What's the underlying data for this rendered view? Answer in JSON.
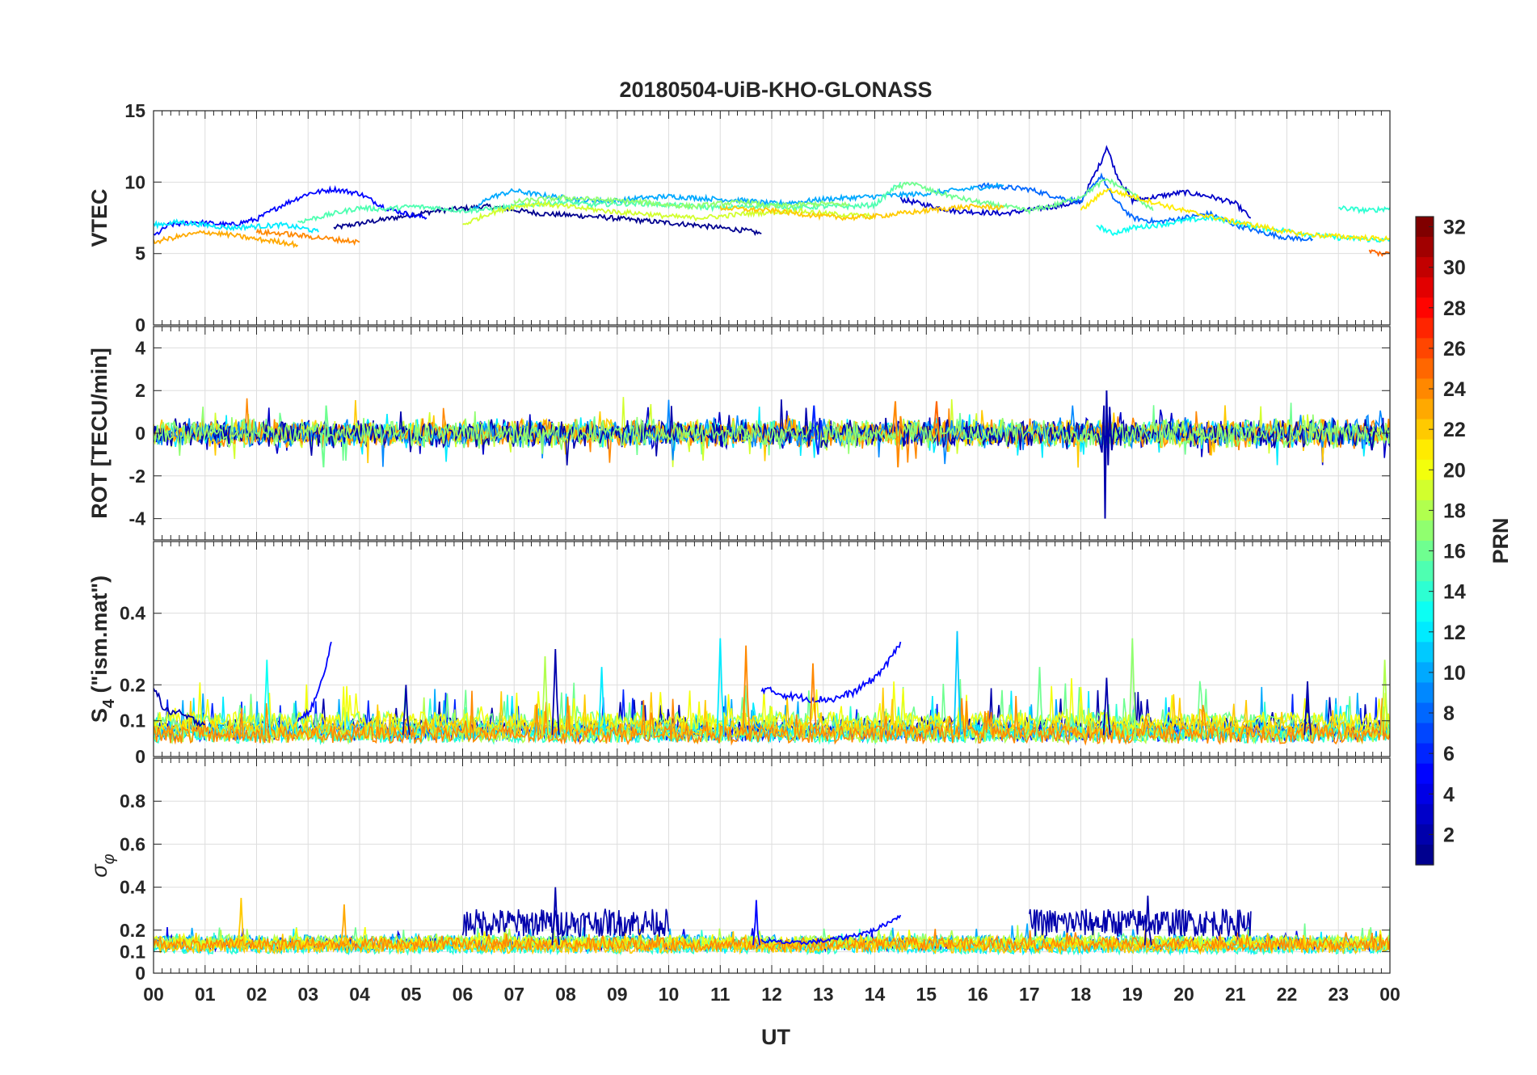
{
  "chart_data": {
    "type": "line",
    "title": "20180504-UiB-KHO-GLONASS",
    "xlabel": "UT",
    "x_tick_labels": [
      "00",
      "01",
      "02",
      "03",
      "04",
      "05",
      "06",
      "07",
      "08",
      "09",
      "10",
      "11",
      "12",
      "13",
      "14",
      "15",
      "16",
      "17",
      "18",
      "19",
      "20",
      "21",
      "22",
      "23",
      "00"
    ],
    "x_range_hours": [
      0,
      24
    ],
    "grid": true,
    "colormap": "jet",
    "colors": [
      "#00008f",
      "#0000ff",
      "#0080ff",
      "#00ffff",
      "#80ff80",
      "#ffff00",
      "#ff8000",
      "#ff0000",
      "#800000"
    ],
    "colorbar": {
      "label": "PRN",
      "range": [
        1,
        32
      ],
      "ticks": [
        2,
        4,
        6,
        8,
        10,
        12,
        14,
        16,
        18,
        20,
        22,
        24,
        26,
        28,
        30,
        32
      ],
      "placement": "right"
    },
    "panels": [
      {
        "id": "vtec",
        "ylabel": "VTEC",
        "ylim": [
          0,
          15
        ],
        "yticks": [
          0,
          5,
          10,
          15
        ],
        "series": [
          {
            "prn": 1,
            "x": [
              3.5,
              4.5,
              5.5,
              6.5,
              7.5,
              8.5,
              9.5,
              10.5,
              11.5,
              11.8
            ],
            "y": [
              6.8,
              7.4,
              8.0,
              8.3,
              7.8,
              7.6,
              7.3,
              7.0,
              6.6,
              6.4
            ]
          },
          {
            "prn": 3,
            "x": [
              14.5,
              15.5,
              16.5,
              17.5,
              18.0,
              18.4,
              18.5,
              18.7,
              19.0,
              19.5,
              20.0,
              20.5,
              21.0,
              21.3
            ],
            "y": [
              8.8,
              8.0,
              7.8,
              8.3,
              8.6,
              11.5,
              12.5,
              10.5,
              8.7,
              9.0,
              9.3,
              9.0,
              8.5,
              7.5
            ]
          },
          {
            "prn": 5,
            "x": [
              0.0,
              0.3,
              0.8,
              1.5,
              2.0,
              2.5,
              3.0,
              3.5,
              4.0,
              4.5,
              5.0,
              5.3
            ],
            "y": [
              6.2,
              7.0,
              7.2,
              7.0,
              7.4,
              8.4,
              9.2,
              9.5,
              9.2,
              8.2,
              7.7,
              7.5
            ]
          },
          {
            "prn": 8,
            "x": [
              16.0,
              17.0,
              17.5,
              18.0,
              18.4,
              18.6,
              19.0,
              19.5,
              20.0,
              20.5,
              21.0,
              21.5,
              22.0,
              22.5
            ],
            "y": [
              9.8,
              9.5,
              9.0,
              8.6,
              10.5,
              9.0,
              7.5,
              7.2,
              7.5,
              7.8,
              7.0,
              6.5,
              6.1,
              6.0
            ]
          },
          {
            "prn": 10,
            "x": [
              6.2,
              6.5,
              7.0,
              7.5,
              8.0,
              8.5,
              9.0,
              9.5,
              10.0,
              10.5,
              11.0,
              11.5,
              12.0,
              12.5,
              13.0,
              13.5,
              14.0,
              14.5,
              15.0,
              15.5,
              16.0,
              16.5
            ],
            "y": [
              8.0,
              8.9,
              9.4,
              9.1,
              8.9,
              8.7,
              8.7,
              8.9,
              9.0,
              8.9,
              8.8,
              8.7,
              8.5,
              8.6,
              8.8,
              8.9,
              9.0,
              9.1,
              9.2,
              9.4,
              9.6,
              9.8
            ]
          },
          {
            "prn": 12,
            "x": [
              0.0,
              0.5,
              1.0,
              1.5,
              2.0,
              2.5,
              3.0,
              3.2
            ],
            "y": [
              7.0,
              7.2,
              7.0,
              6.8,
              6.9,
              7.0,
              6.7,
              6.5
            ]
          },
          {
            "prn": 13,
            "x": [
              18.3,
              18.6,
              19.0,
              19.5,
              20.0,
              20.5,
              21.0,
              21.5,
              22.0,
              22.5,
              23.0,
              23.5,
              24.0
            ],
            "y": [
              7.0,
              6.4,
              6.8,
              7.0,
              7.3,
              7.5,
              7.2,
              6.8,
              6.6,
              6.3,
              6.1,
              6.0,
              5.9
            ]
          },
          {
            "prn": 14,
            "x": [
              23.0,
              23.3,
              23.6,
              24.0
            ],
            "y": [
              8.2,
              8.1,
              8.0,
              8.2
            ]
          },
          {
            "prn": 15,
            "x": [
              2.8,
              3.5,
              4.0,
              4.5,
              5.0,
              5.5,
              6.0,
              6.5,
              7.0,
              7.5,
              8.0,
              8.5,
              9.0,
              9.5,
              10.0,
              10.5,
              11.0,
              11.5,
              12.0,
              12.5,
              13.0,
              13.5,
              14.0,
              14.5
            ],
            "y": [
              7.2,
              7.8,
              8.2,
              8.1,
              8.3,
              8.2,
              8.0,
              8.1,
              8.3,
              8.5,
              8.6,
              8.4,
              8.5,
              8.5,
              8.4,
              8.3,
              8.2,
              8.3,
              8.4,
              8.2,
              8.3,
              8.3,
              8.4,
              10.0
            ]
          },
          {
            "prn": 16,
            "x": [
              14.4,
              14.7,
              15.0,
              15.5,
              16.0,
              16.5,
              17.0,
              17.5,
              18.0,
              18.5,
              19.0,
              19.4
            ],
            "y": [
              9.5,
              10.0,
              9.5,
              9.0,
              8.6,
              8.3,
              8.0,
              8.4,
              9.0,
              10.2,
              9.2,
              8.0
            ]
          },
          {
            "prn": 17,
            "x": [
              7.0,
              7.5,
              8.0,
              8.5,
              9.0,
              9.5,
              10.0,
              10.5,
              11.0,
              11.5,
              12.0,
              12.5,
              13.0,
              13.5
            ],
            "y": [
              8.6,
              8.8,
              8.9,
              8.8,
              8.7,
              8.6,
              8.4,
              8.3,
              8.5,
              8.6,
              8.3,
              8.4,
              8.5,
              8.4
            ]
          },
          {
            "prn": 19,
            "x": [
              6.0,
              6.5,
              7.0,
              7.5,
              8.0,
              8.5,
              9.0,
              9.5,
              10.0,
              10.5,
              11.0,
              11.5,
              12.0,
              12.5,
              13.0,
              13.5,
              14.0
            ],
            "y": [
              7.0,
              7.8,
              8.3,
              8.5,
              8.3,
              8.1,
              7.9,
              7.8,
              7.6,
              7.5,
              7.6,
              7.8,
              7.9,
              8.0,
              7.8,
              7.7,
              7.6
            ]
          },
          {
            "prn": 21,
            "x": [
              18.0,
              18.5,
              19.0,
              19.5,
              20.0,
              20.5,
              21.0,
              21.5,
              22.0,
              22.5,
              23.0,
              23.5,
              24.0
            ],
            "y": [
              8.0,
              9.5,
              9.0,
              8.5,
              8.0,
              7.6,
              7.2,
              6.9,
              6.5,
              6.3,
              6.2,
              6.1,
              6.0
            ]
          },
          {
            "prn": 22,
            "x": [
              11.0,
              11.5,
              12.0,
              12.5,
              13.0,
              13.5,
              14.0,
              14.5,
              15.0,
              15.5,
              16.0,
              16.5
            ],
            "y": [
              8.2,
              8.1,
              8.0,
              7.8,
              7.6,
              7.5,
              7.6,
              7.8,
              8.0,
              8.2,
              8.3,
              8.2
            ]
          },
          {
            "prn": 23,
            "x": [
              0.0,
              0.5,
              1.0,
              1.5,
              2.0,
              2.5,
              2.8
            ],
            "y": [
              5.8,
              6.2,
              6.5,
              6.3,
              6.0,
              5.8,
              5.6
            ]
          },
          {
            "prn": 24,
            "x": [
              2.0,
              2.5,
              3.0,
              3.5,
              4.0
            ],
            "y": [
              6.5,
              6.4,
              6.2,
              6.0,
              5.8
            ]
          },
          {
            "prn": 25,
            "x": [
              23.6,
              23.8,
              24.0
            ],
            "y": [
              5.2,
              5.0,
              5.0
            ]
          }
        ]
      },
      {
        "id": "rot",
        "ylabel": "ROT [TECU/min]",
        "ylim": [
          -5,
          5
        ],
        "yticks": [
          -4,
          -2,
          0,
          2,
          4
        ],
        "series": [
          {
            "prn": 2,
            "x": [
              18.33,
              18.41,
              18.45,
              18.47,
              18.5,
              18.53,
              18.56,
              18.6,
              18.66,
              18.75
            ],
            "y": [
              0.0,
              -0.9,
              1.3,
              -4.0,
              2.0,
              -1.5,
              1.2,
              -0.8,
              0.5,
              -0.2
            ]
          },
          {
            "prn": 6,
            "x": [
              12.78,
              12.82,
              12.86,
              12.9,
              12.95,
              13.0
            ],
            "y": [
              0.0,
              1.3,
              -0.3,
              -1.0,
              0.6,
              -0.2
            ]
          },
          {
            "prn": 24,
            "x": [
              14.35,
              14.4,
              14.45,
              14.5,
              14.55
            ],
            "y": [
              0.0,
              1.5,
              -1.6,
              0.8,
              -0.2
            ]
          },
          {
            "prn": 25,
            "x": [
              15.15,
              15.2,
              15.25
            ],
            "y": [
              0.0,
              1.5,
              -0.4
            ]
          },
          {
            "prn": 16,
            "x": [
              3.25,
              3.3,
              3.35,
              3.4
            ],
            "y": [
              0.0,
              -1.6,
              1.3,
              -0.2
            ]
          },
          {
            "prn": 2,
            "x": [
              23.6,
              23.65,
              23.7
            ],
            "y": [
              0.0,
              -0.8,
              0.1
            ]
          }
        ],
        "noise_band": [
          -0.5,
          0.5
        ]
      },
      {
        "id": "s4",
        "ylabel": "S4 (\"ism.mat\")",
        "ylabel_main": "S",
        "ylabel_sub": "4",
        "ylabel_rest": " (\"ism.mat\")",
        "ylim": [
          0,
          0.6
        ],
        "yticks": [
          0,
          0.1,
          0.2,
          0.4
        ],
        "series": [
          {
            "prn": 5,
            "x": [
              2.8,
              3.0,
              3.2,
              3.35,
              3.45
            ],
            "y": [
              0.1,
              0.12,
              0.18,
              0.25,
              0.32
            ]
          },
          {
            "prn": 5,
            "x": [
              11.8,
              12.3,
              12.8,
              13.2,
              13.6,
              14.0,
              14.3,
              14.5
            ],
            "y": [
              0.19,
              0.17,
              0.16,
              0.16,
              0.18,
              0.22,
              0.27,
              0.32
            ]
          },
          {
            "prn": 2,
            "x": [
              0.0,
              0.2,
              0.5,
              0.8,
              1.0
            ],
            "y": [
              0.2,
              0.13,
              0.12,
              0.1,
              0.09
            ]
          }
        ],
        "spikes": [
          {
            "prn": 13,
            "x": 2.2,
            "y": 0.27
          },
          {
            "prn": 2,
            "x": 4.9,
            "y": 0.2
          },
          {
            "prn": 18,
            "x": 7.6,
            "y": 0.28
          },
          {
            "prn": 2,
            "x": 7.8,
            "y": 0.3
          },
          {
            "prn": 12,
            "x": 8.7,
            "y": 0.25
          },
          {
            "prn": 12,
            "x": 11.0,
            "y": 0.33
          },
          {
            "prn": 24,
            "x": 11.5,
            "y": 0.31
          },
          {
            "prn": 24,
            "x": 12.8,
            "y": 0.26
          },
          {
            "prn": 11,
            "x": 15.6,
            "y": 0.35
          },
          {
            "prn": 16,
            "x": 17.2,
            "y": 0.25
          },
          {
            "prn": 2,
            "x": 18.5,
            "y": 0.22
          },
          {
            "prn": 17,
            "x": 19.0,
            "y": 0.33
          },
          {
            "prn": 2,
            "x": 22.4,
            "y": 0.21
          },
          {
            "prn": 18,
            "x": 23.9,
            "y": 0.27
          }
        ]
      },
      {
        "id": "sigma_phi",
        "ylabel": "σφ",
        "ylabel_main": "σ",
        "ylabel_sub": "φ",
        "ylim": [
          0,
          1
        ],
        "yticks": [
          0,
          0.1,
          0.2,
          0.4,
          0.6,
          0.8
        ],
        "series": [
          {
            "prn": 5,
            "x": [
              11.8,
              12.5,
              13.0,
              13.5,
              14.0,
              14.3,
              14.5
            ],
            "y": [
              0.15,
              0.14,
              0.15,
              0.17,
              0.2,
              0.24,
              0.27
            ]
          }
        ],
        "active_bands": [
          {
            "prn": 2,
            "x": [
              6.0,
              10.0
            ],
            "y": [
              0.2,
              0.3
            ]
          },
          {
            "prn": 2,
            "x": [
              17.0,
              21.3
            ],
            "y": [
              0.2,
              0.3
            ]
          }
        ],
        "spikes": [
          {
            "prn": 22,
            "x": 1.7,
            "y": 0.35
          },
          {
            "prn": 23,
            "x": 3.7,
            "y": 0.32
          },
          {
            "prn": 2,
            "x": 7.8,
            "y": 0.4
          },
          {
            "prn": 2,
            "x": 19.3,
            "y": 0.36
          },
          {
            "prn": 5,
            "x": 11.7,
            "y": 0.34
          }
        ]
      }
    ]
  }
}
